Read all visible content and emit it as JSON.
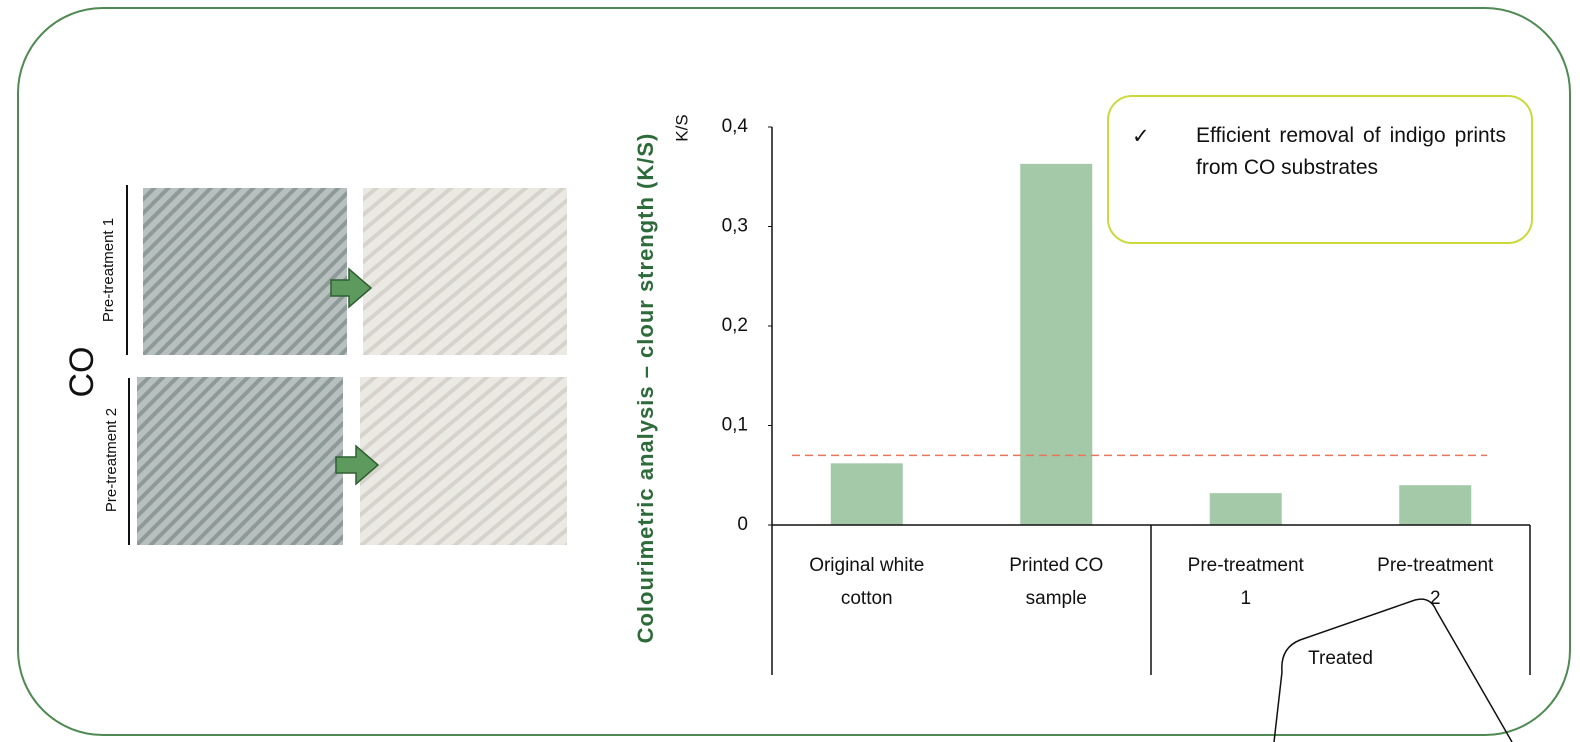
{
  "chart_data": {
    "type": "bar",
    "title": "Colourimetric analysis – clour strength (K/S)",
    "y_label": "K/S",
    "categories": [
      "Original white cotton",
      "Printed CO sample",
      "Pre-treatment 1",
      "Pre-treatment 2"
    ],
    "group_label": "Treated",
    "values": [
      0.062,
      0.363,
      0.032,
      0.04
    ],
    "color": "#a3c9a8",
    "reference_line": 0.07,
    "reference_color": "#e8765a",
    "ylim": [
      0,
      0.4
    ],
    "yticks": [
      0,
      {
        "value": 0.1,
        "label": "0,1"
      },
      {
        "value": 0.2,
        "label": "0,2"
      },
      {
        "value": 0.3,
        "label": "0,3"
      },
      {
        "value": 0.4,
        "label": "0,4"
      }
    ],
    "grid": false
  },
  "samples": {
    "material": "CO",
    "rows": [
      "Pre-treatment 1",
      "Pre-treatment 2"
    ]
  },
  "note": {
    "check": "✓",
    "text": "Efficient removal of indigo prints from CO substrates"
  }
}
